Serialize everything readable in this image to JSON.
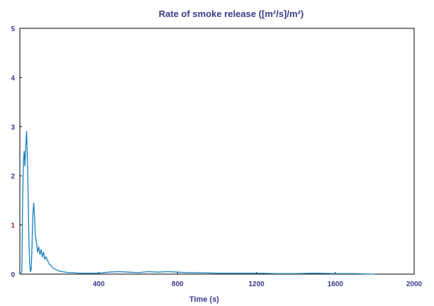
{
  "chart_data": {
    "type": "line",
    "title": "Rate of smoke release ([m²/s]/m²)",
    "xlabel": "Time (s)",
    "ylabel": "",
    "xlim": [
      0,
      2000
    ],
    "ylim": [
      0,
      5
    ],
    "x_ticks": [
      0,
      400,
      800,
      1200,
      1600,
      2000
    ],
    "x_tick_labels": [
      "0",
      "400",
      "800",
      "1200",
      "1600",
      "2000"
    ],
    "y_ticks": [
      0,
      1,
      2,
      3,
      4,
      5
    ],
    "y_tick_labels": [
      "0",
      "1",
      "2",
      "3",
      "4",
      "5"
    ],
    "grid": false,
    "colors": {
      "series": "#1a7fc1",
      "text": "#3b3b8c",
      "frame": "#000000",
      "ytick_1": "#b02030"
    },
    "series": [
      {
        "x": [
          0,
          10,
          14,
          18,
          22,
          26,
          30,
          34,
          38,
          42,
          46,
          50,
          54,
          58,
          62,
          66,
          70,
          74,
          78,
          82,
          86,
          90,
          96,
          102,
          108,
          114,
          120,
          126,
          132,
          138,
          144,
          150,
          156,
          162,
          170,
          180,
          190,
          200,
          215,
          230,
          250,
          270,
          300,
          340,
          400,
          450,
          500,
          550,
          600,
          650,
          700,
          750,
          800,
          850,
          900,
          1000,
          1100,
          1200,
          1300,
          1400,
          1500,
          1600,
          1700,
          1800
        ],
        "y": [
          0,
          0.05,
          1.5,
          2.3,
          2.5,
          2.2,
          2.6,
          2.9,
          2.4,
          1.6,
          0.7,
          0.2,
          0.05,
          0.1,
          0.6,
          1.2,
          1.45,
          1.2,
          0.8,
          0.7,
          0.6,
          0.45,
          0.55,
          0.4,
          0.5,
          0.35,
          0.45,
          0.3,
          0.35,
          0.3,
          0.25,
          0.2,
          0.18,
          0.15,
          0.12,
          0.1,
          0.08,
          0.06,
          0.05,
          0.04,
          0.03,
          0.03,
          0.02,
          0.02,
          0.02,
          0.04,
          0.05,
          0.04,
          0.03,
          0.05,
          0.04,
          0.05,
          0.04,
          0.03,
          0.03,
          0.02,
          0.02,
          0.02,
          0.01,
          0.01,
          0.02,
          0.01,
          0.01,
          0.0
        ]
      }
    ]
  }
}
